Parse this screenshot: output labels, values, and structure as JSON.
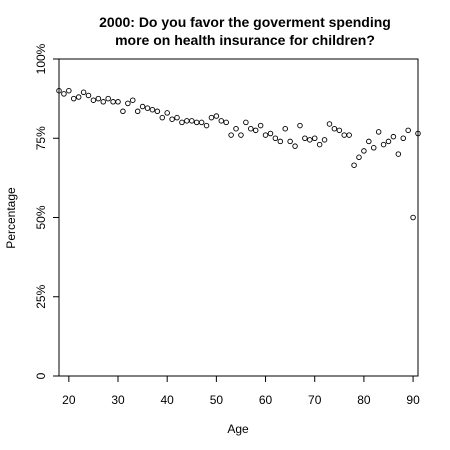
{
  "chart_data": {
    "type": "scatter",
    "title_lines": [
      "2000: Do you favor the goverment spending",
      "more on health insurance for children?"
    ],
    "xlabel": "Age",
    "ylabel": "Percentage",
    "xlim": [
      18,
      91
    ],
    "ylim": [
      0,
      100
    ],
    "x_ticks": [
      20,
      30,
      40,
      50,
      60,
      70,
      80,
      90
    ],
    "y_ticks": [
      0,
      25,
      50,
      75,
      100
    ],
    "y_tick_labels": [
      "0",
      "25%",
      "50%",
      "75%",
      "100%"
    ],
    "grid": false,
    "marker": "open-circle",
    "x": [
      18,
      19,
      20,
      21,
      22,
      23,
      24,
      25,
      26,
      27,
      28,
      29,
      30,
      31,
      32,
      33,
      34,
      35,
      36,
      37,
      38,
      39,
      40,
      41,
      42,
      43,
      44,
      45,
      46,
      47,
      48,
      49,
      50,
      51,
      52,
      53,
      54,
      55,
      56,
      57,
      58,
      59,
      60,
      61,
      62,
      63,
      64,
      65,
      66,
      67,
      68,
      69,
      70,
      71,
      72,
      73,
      74,
      75,
      76,
      77,
      78,
      79,
      80,
      81,
      82,
      83,
      84,
      85,
      86,
      87,
      88,
      89,
      90,
      91
    ],
    "y": [
      90,
      89,
      90,
      87.5,
      88,
      89.5,
      88.5,
      87,
      87.5,
      86.5,
      87.5,
      86.5,
      86.5,
      83.5,
      86,
      87,
      83.5,
      85,
      84.5,
      84,
      83.5,
      81.5,
      83,
      81,
      81.5,
      80,
      80.5,
      80.5,
      80,
      80,
      79,
      81.5,
      82,
      80.5,
      80,
      76,
      78,
      76,
      80,
      78,
      77.5,
      79,
      76,
      76.5,
      75,
      74,
      78,
      74,
      72.5,
      79,
      75,
      74.5,
      75,
      73,
      74.5,
      79.5,
      78,
      77.5,
      76,
      76,
      66.5,
      69,
      71,
      74,
      72,
      77,
      73,
      74,
      75.5,
      70,
      75,
      77.5,
      50,
      76.5
    ]
  }
}
